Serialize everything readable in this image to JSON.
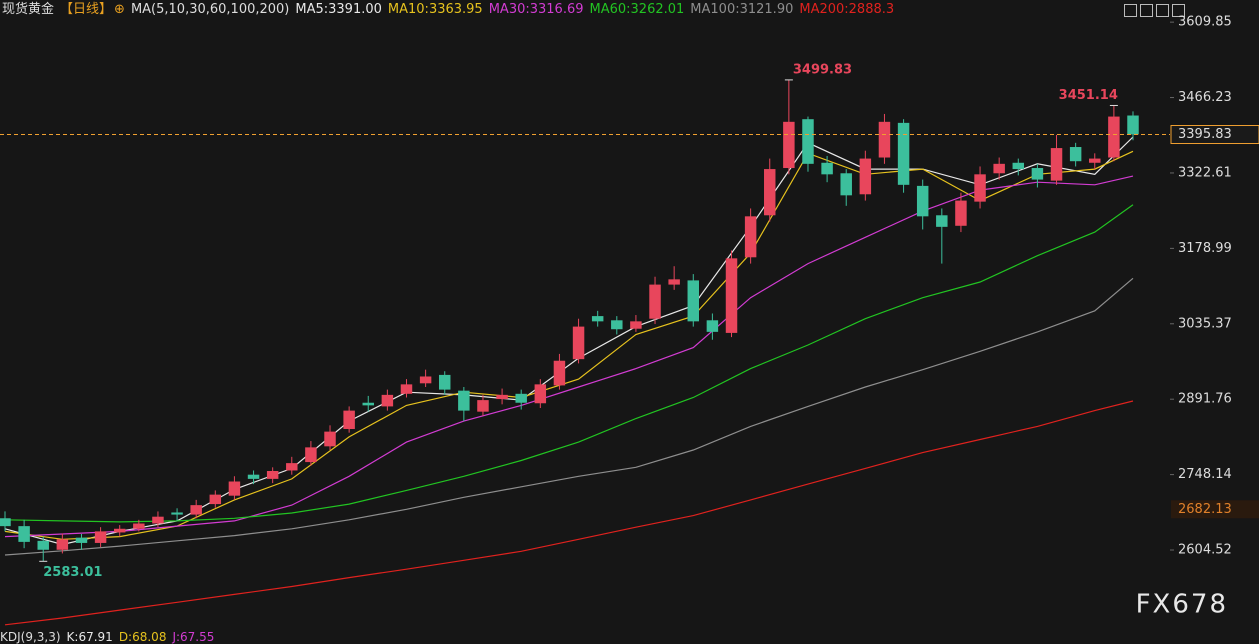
{
  "chart_data": {
    "type": "candlestick",
    "title": "现货黄金",
    "period": "【日线】",
    "ma_label": "MA(5,10,30,60,100,200)",
    "up_color": "#e8465c",
    "down_color": "#3cbf9c",
    "ylim": [
      2456,
      3652
    ],
    "yticks": [
      3609.85,
      3466.23,
      3322.61,
      3178.99,
      3035.37,
      2891.76,
      2748.14,
      2604.52
    ],
    "open": [
      2665,
      2650,
      2622,
      2605,
      2628,
      2618,
      2638,
      2645,
      2655,
      2676,
      2672,
      2692,
      2708,
      2748,
      2740,
      2756,
      2772,
      2802,
      2835,
      2885,
      2878,
      2902,
      2922,
      2938,
      2908,
      2868,
      2892,
      2902,
      2884,
      2918,
      2968,
      3050,
      3042,
      3026,
      3045,
      3110,
      3118,
      3042,
      3018,
      3162,
      3242,
      3332,
      3425,
      3342,
      3322,
      3282,
      3352,
      3418,
      3298,
      3242,
      3222,
      3268,
      3322,
      3342,
      3332,
      3308,
      3372,
      3342,
      3352,
      3432
    ],
    "high": [
      2678,
      2662,
      2630,
      2636,
      2635,
      2648,
      2652,
      2662,
      2678,
      2684,
      2700,
      2718,
      2745,
      2756,
      2762,
      2782,
      2812,
      2842,
      2878,
      2898,
      2910,
      2930,
      2948,
      2945,
      2915,
      2900,
      2912,
      2910,
      2930,
      2978,
      3045,
      3060,
      3050,
      3052,
      3125,
      3145,
      3130,
      3055,
      3175,
      3255,
      3350,
      3499.83,
      3430,
      3355,
      3330,
      3365,
      3435,
      3425,
      3310,
      3255,
      3285,
      3335,
      3352,
      3350,
      3340,
      3395,
      3380,
      3360,
      3451.14,
      3440
    ],
    "low": [
      2640,
      2608,
      2583.01,
      2598,
      2605,
      2610,
      2630,
      2640,
      2648,
      2660,
      2665,
      2685,
      2700,
      2730,
      2732,
      2748,
      2765,
      2795,
      2828,
      2868,
      2870,
      2895,
      2915,
      2900,
      2850,
      2860,
      2882,
      2872,
      2875,
      2910,
      2960,
      3030,
      3015,
      3020,
      3035,
      3100,
      3030,
      3005,
      3010,
      3150,
      3230,
      3320,
      3325,
      3305,
      3260,
      3270,
      3340,
      3285,
      3215,
      3150,
      3210,
      3255,
      3310,
      3318,
      3295,
      3300,
      3335,
      3330,
      3345,
      3385
    ],
    "close": [
      2650,
      2620,
      2605,
      2625,
      2618,
      2640,
      2645,
      2655,
      2668,
      2672,
      2690,
      2710,
      2735,
      2740,
      2755,
      2770,
      2800,
      2830,
      2870,
      2880,
      2900,
      2920,
      2935,
      2910,
      2870,
      2890,
      2900,
      2885,
      2920,
      2965,
      3030,
      3040,
      3025,
      3040,
      3110,
      3120,
      3040,
      3020,
      3160,
      3240,
      3330,
      3420,
      3340,
      3320,
      3280,
      3350,
      3420,
      3300,
      3240,
      3220,
      3270,
      3320,
      3340,
      3330,
      3310,
      3370,
      3345,
      3350,
      3430,
      3396
    ],
    "annotations": [
      3499.83,
      3451.14,
      2583.01
    ],
    "price_labels": [
      {
        "value": 3395.83,
        "color": "#f0a030",
        "dashed": true
      },
      {
        "value": 2682.13,
        "color": "#e0802a",
        "dashed": false
      }
    ],
    "ma": {
      "x": [
        0,
        3,
        6,
        9,
        12,
        15,
        18,
        21,
        24,
        27,
        30,
        33,
        36,
        39,
        42,
        45,
        48,
        51,
        54,
        57,
        59
      ],
      "series": [
        {
          "name": "MA5:3391.00",
          "color": "#e8e8e8",
          "values": [
            2645,
            2615,
            2640,
            2660,
            2720,
            2760,
            2850,
            2905,
            2900,
            2890,
            2970,
            3030,
            3070,
            3220,
            3380,
            3330,
            3330,
            3300,
            3340,
            3320,
            3391
          ]
        },
        {
          "name": "MA10:3363.95",
          "color": "#e6c21e",
          "values": [
            2640,
            2625,
            2630,
            2650,
            2700,
            2740,
            2820,
            2880,
            2905,
            2895,
            2930,
            3015,
            3050,
            3170,
            3360,
            3320,
            3330,
            3270,
            3320,
            3330,
            3363.95
          ]
        },
        {
          "name": "MA30:3316.69",
          "color": "#d23cd2",
          "values": [
            2630,
            2635,
            2640,
            2650,
            2660,
            2690,
            2745,
            2810,
            2850,
            2880,
            2915,
            2950,
            2990,
            3085,
            3150,
            3200,
            3250,
            3290,
            3305,
            3300,
            3316.69
          ]
        },
        {
          "name": "MA60:3262.01",
          "color": "#22c422",
          "values": [
            2662,
            2660,
            2658,
            2660,
            2665,
            2675,
            2692,
            2718,
            2745,
            2775,
            2810,
            2855,
            2895,
            2950,
            2995,
            3045,
            3085,
            3115,
            3165,
            3210,
            3262.01
          ]
        },
        {
          "name": "MA100:3121.90",
          "color": "#8e8e8e",
          "values": [
            2595,
            2603,
            2612,
            2622,
            2632,
            2645,
            2662,
            2682,
            2705,
            2725,
            2745,
            2762,
            2795,
            2840,
            2878,
            2915,
            2948,
            2983,
            3020,
            3060,
            3121.9
          ]
        },
        {
          "name": "MA200:2888.3",
          "color": "#e0221e",
          "values": [
            2462,
            2475,
            2490,
            2505,
            2520,
            2535,
            2552,
            2568,
            2585,
            2602,
            2625,
            2648,
            2670,
            2700,
            2730,
            2760,
            2790,
            2815,
            2840,
            2870,
            2888.3
          ]
        }
      ]
    },
    "watermark": "FX678",
    "indicator": {
      "name": "KDJ(9,3,3)",
      "lines": [
        {
          "text": "K:67.91",
          "color": "#e8e8e8"
        },
        {
          "text": "D:68.08",
          "color": "#e6c21e"
        },
        {
          "text": "J:67.55",
          "color": "#d23cd2"
        }
      ]
    }
  }
}
